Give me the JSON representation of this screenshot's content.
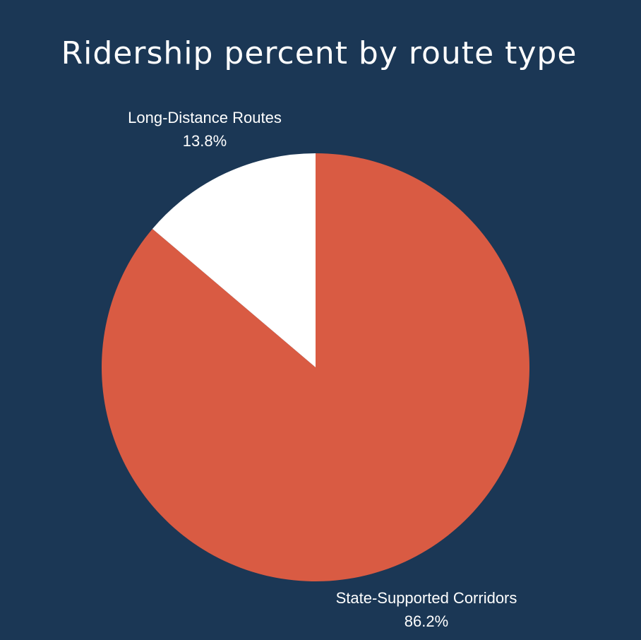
{
  "chart_data": {
    "type": "pie",
    "title": "Ridership percent by route type",
    "slices": [
      {
        "label": "State-Supported Corridors",
        "value": 86.2,
        "display": "86.2%",
        "color": "#d95b43"
      },
      {
        "label": "Long-Distance Routes",
        "value": 13.8,
        "display": "13.8%",
        "color": "#ffffff"
      }
    ],
    "start": "12 o'clock",
    "direction": "clockwise",
    "legend": "none"
  },
  "colors": {
    "background": "#1b3755",
    "title": "#ffffff",
    "label": "#ffffff"
  }
}
